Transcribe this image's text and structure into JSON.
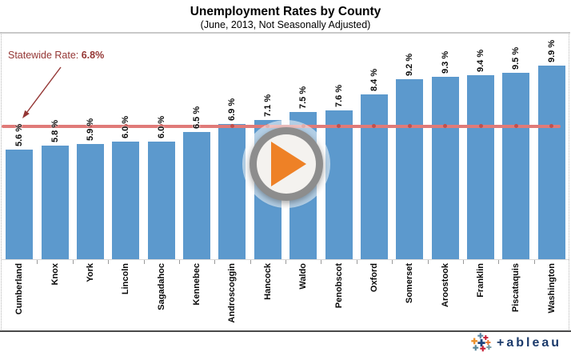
{
  "header": {
    "title": "Unemployment Rates by County",
    "subtitle": "(June, 2013, Not Seasonally Adjusted)"
  },
  "annotation": {
    "label": "Statewide Rate:",
    "value": "6.8%",
    "color": "#943634"
  },
  "chart_data": {
    "type": "bar",
    "title": "Unemployment Rates by County",
    "subtitle": "(June, 2013, Not Seasonally Adjusted)",
    "categories": [
      "Cumberland",
      "Knox",
      "York",
      "Lincoln",
      "Sagadahoc",
      "Kennebec",
      "Androscoggin",
      "Hancock",
      "Waldo",
      "Penobscot",
      "Oxford",
      "Somerset",
      "Aroostook",
      "Franklin",
      "Piscataquis",
      "Washington"
    ],
    "values": [
      5.6,
      5.8,
      5.9,
      6.0,
      6.0,
      6.5,
      6.9,
      7.1,
      7.5,
      7.6,
      8.4,
      9.2,
      9.3,
      9.4,
      9.5,
      9.9
    ],
    "value_labels": [
      "5.6 %",
      "5.8 %",
      "5.9 %",
      "6.0 %",
      "6.0 %",
      "6.5 %",
      "6.9 %",
      "7.1 %",
      "7.5 %",
      "7.6 %",
      "8.4 %",
      "9.2 %",
      "9.3 %",
      "9.4 %",
      "9.5 %",
      "9.9 %"
    ],
    "ylim": [
      0,
      11.6
    ],
    "grid": false,
    "legend": false,
    "category_label_rotation": -90,
    "bar_color": "#5c99cd",
    "reference_line": {
      "label": "Statewide Rate: 6.8%",
      "value": 6.8,
      "line_color": "#e07a78",
      "marker_color": "#c0504d"
    }
  },
  "player": {
    "ring_color": "#8d8d8d",
    "face_color": "#f4f2ef",
    "triangle_color": "#ee8126"
  },
  "footer": {
    "logo_text": "+ableau",
    "logo_color": "#1b3a6b",
    "mark_colors": [
      "#5b87a5",
      "#c72037",
      "#eb912c",
      "#1f447e",
      "#e8762d",
      "#59879b",
      "#c72037",
      "#7099a5"
    ]
  }
}
